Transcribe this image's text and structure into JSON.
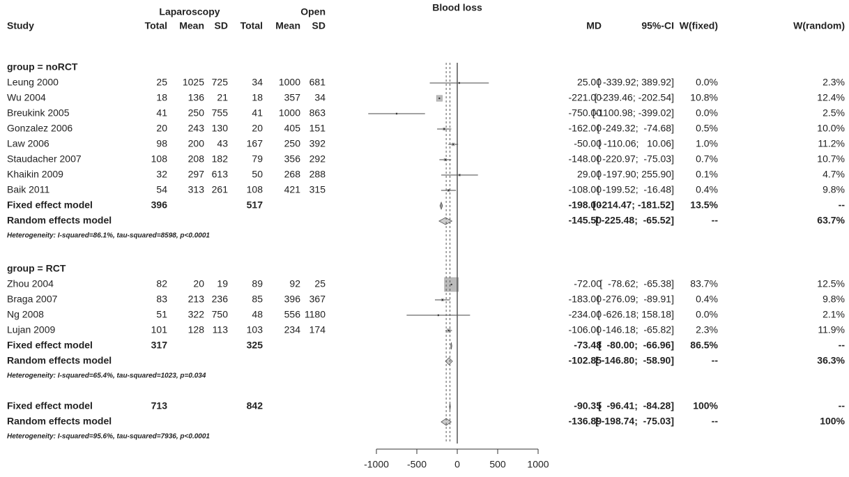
{
  "chart_data": {
    "type": "forest",
    "title": "Blood loss",
    "header": {
      "group1": "Laparoscopy",
      "group2": "Open",
      "study": "Study",
      "total1": "Total",
      "mean1": "Mean",
      "sd1": "SD",
      "total2": "Total",
      "mean2": "Mean",
      "sd2": "SD",
      "md": "MD",
      "ci": "95%-CI",
      "w_fixed": "W(fixed)",
      "w_random": "W(random)"
    },
    "groups": [
      {
        "label": "group = noRCT",
        "studies": [
          {
            "name": "Leung 2000",
            "n1": 25,
            "m1": 1025,
            "sd1": 725,
            "n2": 34,
            "m2": 1000,
            "sd2": 681,
            "md": 25,
            "lo": -339.92,
            "hi": 389.92,
            "md_label": "25.00",
            "ci_label": "[ -339.92; 389.92]",
            "w_fixed": 0.0,
            "w_fixed_label": "0.0%",
            "w_random_label": "2.3%"
          },
          {
            "name": "Wu 2004",
            "n1": 18,
            "m1": 136,
            "sd1": 21,
            "n2": 18,
            "m2": 357,
            "sd2": 34,
            "md": -221,
            "lo": -239.46,
            "hi": -202.54,
            "md_label": "-221.00",
            "ci_label": "[ -239.46; -202.54]",
            "w_fixed": 10.8,
            "w_fixed_label": "10.8%",
            "w_random_label": "12.4%"
          },
          {
            "name": "Breukink 2005",
            "n1": 41,
            "m1": 250,
            "sd1": 755,
            "n2": 41,
            "m2": 1000,
            "sd2": 863,
            "md": -750,
            "lo": -1100.98,
            "hi": -399.02,
            "md_label": "-750.00",
            "ci_label": "[-1100.98; -399.02]",
            "w_fixed": 0.0,
            "w_fixed_label": "0.0%",
            "w_random_label": "2.5%"
          },
          {
            "name": "Gonzalez 2006",
            "n1": 20,
            "m1": 243,
            "sd1": 130,
            "n2": 20,
            "m2": 405,
            "sd2": 151,
            "md": -162,
            "lo": -249.32,
            "hi": -74.68,
            "md_label": "-162.00",
            "ci_label": "[ -249.32;  -74.68]",
            "w_fixed": 0.5,
            "w_fixed_label": "0.5%",
            "w_random_label": "10.0%"
          },
          {
            "name": "Law 2006",
            "n1": 98,
            "m1": 200,
            "sd1": 43,
            "n2": 167,
            "m2": 250,
            "sd2": 392,
            "md": -50,
            "lo": -110.06,
            "hi": 10.06,
            "md_label": "-50.00",
            "ci_label": "[ -110.06;   10.06]",
            "w_fixed": 1.0,
            "w_fixed_label": "1.0%",
            "w_random_label": "11.2%"
          },
          {
            "name": "Staudacher 2007",
            "n1": 108,
            "m1": 208,
            "sd1": 182,
            "n2": 79,
            "m2": 356,
            "sd2": 292,
            "md": -148,
            "lo": -220.97,
            "hi": -75.03,
            "md_label": "-148.00",
            "ci_label": "[ -220.97;  -75.03]",
            "w_fixed": 0.7,
            "w_fixed_label": "0.7%",
            "w_random_label": "10.7%"
          },
          {
            "name": "Khaikin 2009",
            "n1": 32,
            "m1": 297,
            "sd1": 613,
            "n2": 50,
            "m2": 268,
            "sd2": 288,
            "md": 29,
            "lo": -197.9,
            "hi": 255.9,
            "md_label": "29.00",
            "ci_label": "[ -197.90; 255.90]",
            "w_fixed": 0.1,
            "w_fixed_label": "0.1%",
            "w_random_label": "4.7%"
          },
          {
            "name": "Baik 2011",
            "n1": 54,
            "m1": 313,
            "sd1": 261,
            "n2": 108,
            "m2": 421,
            "sd2": 315,
            "md": -108,
            "lo": -199.52,
            "hi": -16.48,
            "md_label": "-108.00",
            "ci_label": "[ -199.52;  -16.48]",
            "w_fixed": 0.4,
            "w_fixed_label": "0.4%",
            "w_random_label": "9.8%"
          }
        ],
        "fixed": {
          "name": "Fixed effect model",
          "n1": 396,
          "n2": 517,
          "md": -198,
          "lo": -214.47,
          "hi": -181.52,
          "md_label": "-198.00",
          "ci_label": "[ -214.47; -181.52]",
          "w_fixed_label": "13.5%",
          "w_random_label": "--"
        },
        "random": {
          "name": "Random effects model",
          "md": -145.5,
          "lo": -225.48,
          "hi": -65.52,
          "md_label": "-145.50",
          "ci_label": "[ -225.48;  -65.52]",
          "w_fixed_label": "--",
          "w_random_label": "63.7%"
        },
        "heterogeneity": "Heterogeneity: I-squared=86.1%, tau-squared=8598, p<0.0001"
      },
      {
        "label": "group = RCT",
        "studies": [
          {
            "name": "Zhou 2004",
            "n1": 82,
            "m1": 20,
            "sd1": 19,
            "n2": 89,
            "m2": 92,
            "sd2": 25,
            "md": -72,
            "lo": -78.62,
            "hi": -65.38,
            "md_label": "-72.00",
            "ci_label": "[  -78.62;  -65.38]",
            "w_fixed": 83.7,
            "w_fixed_label": "83.7%",
            "w_random_label": "12.5%"
          },
          {
            "name": "Braga 2007",
            "n1": 83,
            "m1": 213,
            "sd1": 236,
            "n2": 85,
            "m2": 396,
            "sd2": 367,
            "md": -183,
            "lo": -276.09,
            "hi": -89.91,
            "md_label": "-183.00",
            "ci_label": "[ -276.09;  -89.91]",
            "w_fixed": 0.4,
            "w_fixed_label": "0.4%",
            "w_random_label": "9.8%"
          },
          {
            "name": "Ng 2008",
            "n1": 51,
            "m1": 322,
            "sd1": 750,
            "n2": 48,
            "m2": 556,
            "sd2": 1180,
            "md": -234,
            "lo": -626.18,
            "hi": 158.18,
            "md_label": "-234.00",
            "ci_label": "[ -626.18; 158.18]",
            "w_fixed": 0.0,
            "w_fixed_label": "0.0%",
            "w_random_label": "2.1%"
          },
          {
            "name": "Lujan 2009",
            "n1": 101,
            "m1": 128,
            "sd1": 113,
            "n2": 103,
            "m2": 234,
            "sd2": 174,
            "md": -106,
            "lo": -146.18,
            "hi": -65.82,
            "md_label": "-106.00",
            "ci_label": "[ -146.18;  -65.82]",
            "w_fixed": 2.3,
            "w_fixed_label": "2.3%",
            "w_random_label": "11.9%"
          }
        ],
        "fixed": {
          "name": "Fixed effect model",
          "n1": 317,
          "n2": 325,
          "md": -73.48,
          "lo": -80.0,
          "hi": -66.96,
          "md_label": "-73.48",
          "ci_label": "[  -80.00;  -66.96]",
          "w_fixed_label": "86.5%",
          "w_random_label": "--"
        },
        "random": {
          "name": "Random effects model",
          "md": -102.85,
          "lo": -146.8,
          "hi": -58.9,
          "md_label": "-102.85",
          "ci_label": "[ -146.80;  -58.90]",
          "w_fixed_label": "--",
          "w_random_label": "36.3%"
        },
        "heterogeneity": "Heterogeneity: I-squared=65.4%, tau-squared=1023, p=0.034"
      }
    ],
    "overall": {
      "fixed": {
        "name": "Fixed effect model",
        "n1": 713,
        "n2": 842,
        "md": -90.35,
        "lo": -96.41,
        "hi": -84.28,
        "md_label": "-90.35",
        "ci_label": "[  -96.41;  -84.28]",
        "w_fixed_label": "100%",
        "w_random_label": "--"
      },
      "random": {
        "name": "Random effects model",
        "md": -136.89,
        "lo": -198.74,
        "hi": -75.03,
        "md_label": "-136.89",
        "ci_label": "[ -198.74;  -75.03]",
        "w_fixed_label": "--",
        "w_random_label": "100%"
      },
      "heterogeneity": "Heterogeneity: I-squared=95.6%, tau-squared=7936, p<0.0001"
    },
    "xlim": [
      -1000,
      1000
    ],
    "xticks": [
      -1000,
      -500,
      0,
      500,
      1000
    ]
  }
}
